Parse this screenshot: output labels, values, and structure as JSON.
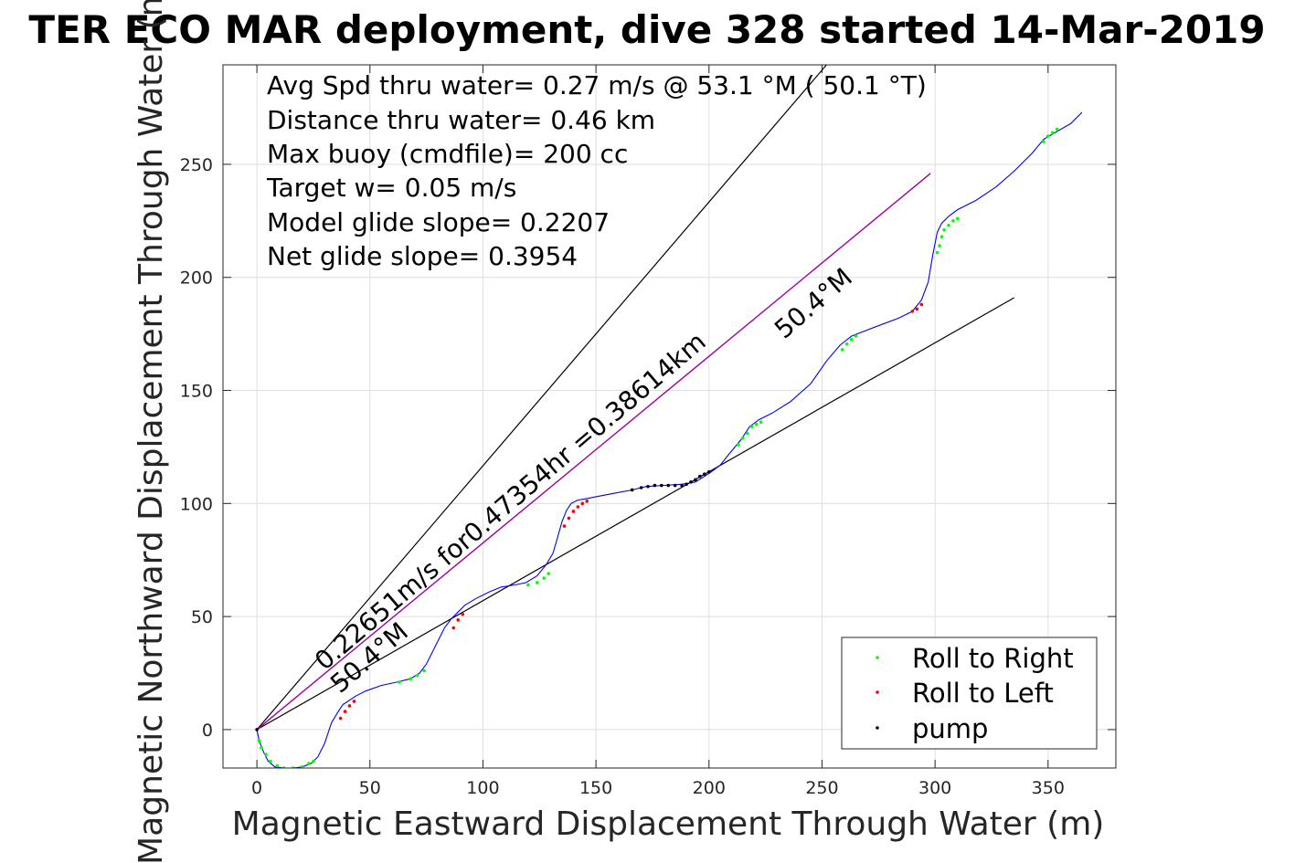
{
  "title": "TER ECO MAR deployment, dive 328 started 14-Mar-2019",
  "chart_data": {
    "type": "line",
    "xlabel": "Magnetic Eastward Displacement Through Water (m)",
    "ylabel": "Magnetic Northward Displacement Through Water (m)",
    "xlim": [
      -15,
      380
    ],
    "ylim": [
      -17,
      294
    ],
    "xticks": [
      0,
      50,
      100,
      150,
      200,
      250,
      300,
      350
    ],
    "yticks": [
      0,
      50,
      100,
      150,
      200,
      250
    ],
    "grid": true,
    "legend_position": "bottom-right",
    "colors": {
      "track": "#0000ff",
      "roll_right": "#00ff00",
      "roll_left": "#ff0000",
      "pump": "#000000",
      "net_line": "#a000a0",
      "lines": "#000000"
    },
    "stats": [
      "Avg Spd thru water=  0.27 m/s @  53.1 °M ( 50.1 °T)",
      "Distance thru water=  0.46 km",
      "Max buoy (cmdfile)= 200 cc",
      "Target w= 0.05 m/s",
      "Model glide slope= 0.2207",
      "Net glide slope= 0.3954"
    ],
    "annotations": [
      "0.22651m/s for0.47354hr =0.38614km",
      "50.4°M",
      "50.4°M"
    ],
    "legend": [
      "Roll to Right",
      "Roll to Left",
      "pump"
    ],
    "series": [
      {
        "name": "track",
        "x": [
          0,
          1,
          3,
          5,
          8,
          12,
          16,
          20,
          24,
          27,
          30,
          33,
          36,
          38,
          41,
          44,
          48,
          55,
          62,
          68,
          72,
          75,
          79,
          83,
          86,
          89,
          92,
          97,
          103,
          108,
          114,
          119,
          124,
          128,
          131,
          133,
          135,
          137,
          139,
          142,
          145,
          150,
          158,
          166,
          172,
          180,
          188,
          194,
          198,
          201,
          205,
          209,
          214,
          218,
          222,
          228,
          236,
          245,
          252,
          258,
          263,
          268,
          276,
          284,
          290,
          294,
          297,
          299,
          301,
          303,
          306,
          310,
          318,
          327,
          335,
          343,
          348,
          353,
          360,
          365
        ],
        "y": [
          0,
          -5,
          -10,
          -14,
          -16.5,
          -17,
          -17,
          -16.5,
          -15,
          -12,
          -6,
          3,
          8,
          11,
          13,
          15,
          17,
          19.5,
          21,
          22.5,
          25,
          29,
          37,
          45,
          49,
          52,
          55,
          58,
          61,
          63,
          64,
          65,
          68,
          73,
          78,
          85,
          92,
          97,
          100,
          101.5,
          102,
          103,
          104.5,
          106,
          107.5,
          108,
          108.5,
          109.5,
          112,
          114,
          117,
          122,
          128,
          134,
          137,
          140,
          145,
          153,
          163,
          170,
          174,
          176,
          179,
          182,
          185,
          190,
          198,
          210,
          220,
          224,
          227,
          230,
          234,
          240,
          247,
          255,
          261,
          264,
          268,
          273
        ]
      },
      {
        "name": "Roll to Right",
        "x": [
          1,
          2,
          4,
          6,
          9,
          12,
          16,
          20,
          23,
          25,
          63,
          68,
          71,
          74,
          120,
          124,
          127,
          129,
          213,
          215,
          217,
          219,
          221,
          223,
          259,
          261,
          263,
          265,
          301,
          302,
          303,
          304,
          306,
          308,
          310,
          348,
          350,
          352,
          354
        ],
        "y": [
          -5,
          -8,
          -11,
          -14,
          -16,
          -17,
          -17,
          -16.5,
          -15,
          -14,
          21,
          22.5,
          24,
          26,
          64,
          65,
          67,
          69,
          126,
          129,
          131,
          134,
          135,
          136,
          168,
          170.5,
          172.5,
          174,
          211,
          214,
          218,
          221,
          223,
          225,
          226,
          260,
          262.5,
          264,
          265.5
        ]
      },
      {
        "name": "Roll to Left",
        "x": [
          37,
          39,
          41,
          43,
          87,
          89,
          91,
          136,
          138,
          140,
          142,
          144,
          146,
          290,
          292,
          294
        ],
        "y": [
          5,
          8,
          10.5,
          12.5,
          45,
          48.5,
          51,
          90,
          93.5,
          96.5,
          98.5,
          100,
          101,
          185,
          186,
          188
        ]
      },
      {
        "name": "pump",
        "x": [
          166,
          170,
          173,
          176,
          179,
          182,
          185,
          188,
          190,
          192,
          194,
          196,
          198,
          200
        ],
        "y": [
          106,
          107,
          107.5,
          108,
          108,
          108,
          108,
          108,
          108.5,
          109.5,
          110.5,
          112,
          113,
          114
        ]
      }
    ],
    "reference_lines": [
      {
        "x": [
          0,
          252
        ],
        "y": [
          0,
          294
        ]
      },
      {
        "x": [
          0,
          335
        ],
        "y": [
          0,
          191
        ]
      },
      {
        "x": [
          0,
          298
        ],
        "y": [
          0,
          246
        ]
      }
    ]
  }
}
